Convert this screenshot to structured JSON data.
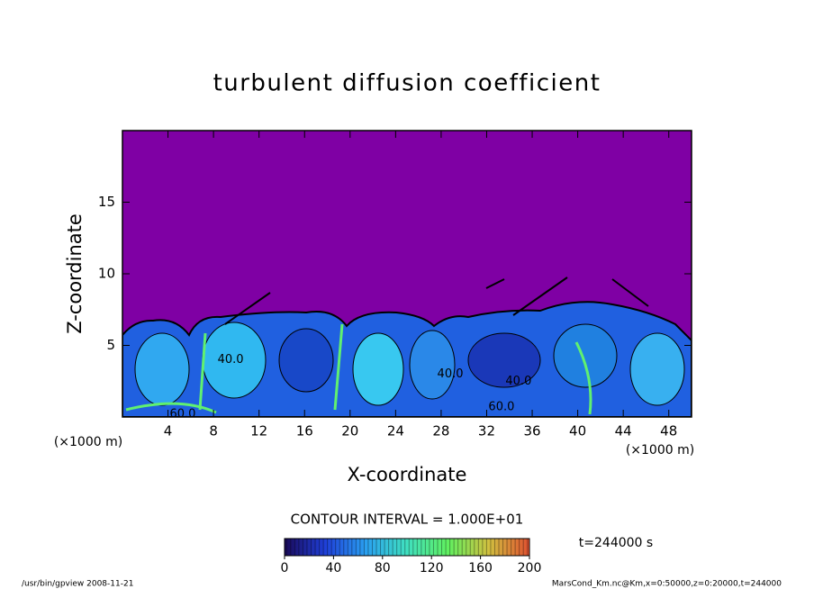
{
  "chart_data": {
    "type": "contour",
    "title": "turbulent diffusion coefficient",
    "x_label": "X-coordinate",
    "y_label": "Z-coordinate",
    "x_unit_left": "(×1000 m)",
    "x_unit_right": "(×1000 m)",
    "xlim": [
      0,
      50
    ],
    "xticks": [
      4,
      8,
      12,
      16,
      20,
      24,
      28,
      32,
      36,
      40,
      44,
      48
    ],
    "ylim": [
      0,
      20
    ],
    "yticks": [
      5,
      10,
      15
    ],
    "background_color": "#7f00a4",
    "contour_labels": [
      {
        "text": "40.0",
        "x": 9.5,
        "y": 4.0
      },
      {
        "text": "40.0",
        "x": 28.8,
        "y": 3.0
      },
      {
        "text": "40.0",
        "x": 34.8,
        "y": 2.5
      },
      {
        "text": "60.0",
        "x": 5.3,
        "y": 0.2
      },
      {
        "text": "60.0",
        "x": 33.3,
        "y": 0.7
      }
    ],
    "contour_interval": "CONTOUR INTERVAL = 1.000E+01",
    "colorbar": {
      "lim": [
        0,
        200
      ],
      "ticks": [
        0,
        40,
        80,
        120,
        160,
        200
      ],
      "colors": [
        "#1a0a5a",
        "#1f3fd8",
        "#2aa0f0",
        "#40e0c0",
        "#60f060",
        "#d0c040",
        "#e05030"
      ]
    },
    "time_label": "t=244000 s",
    "footer_left": "/usr/bin/gpview  2008-11-21",
    "footer_right": "MarsCond_Km.nc@Km,x=0:50000,z=0:20000,t=244000"
  }
}
